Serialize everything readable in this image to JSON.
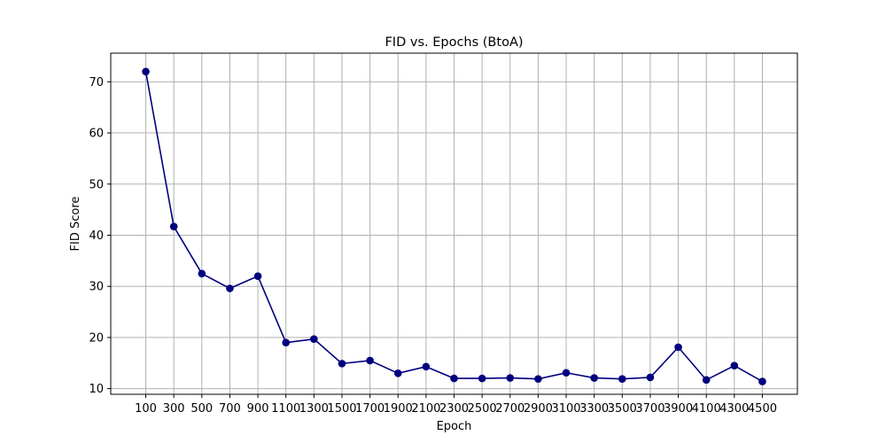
{
  "chart_data": {
    "type": "line",
    "title": "FID vs. Epochs (BtoA)",
    "xlabel": "Epoch",
    "ylabel": "FID Score",
    "x": [
      100,
      300,
      500,
      700,
      900,
      1100,
      1300,
      1500,
      1700,
      1900,
      2100,
      2300,
      2500,
      2700,
      2900,
      3100,
      3300,
      3500,
      3700,
      3900,
      4100,
      4300,
      4500
    ],
    "series": [
      {
        "values": [
          72.0,
          41.7,
          32.5,
          29.6,
          32.0,
          19.0,
          19.7,
          14.9,
          15.5,
          13.0,
          14.3,
          12.0,
          12.0,
          12.1,
          11.9,
          13.1,
          12.1,
          11.9,
          12.2,
          18.1,
          11.7,
          14.5,
          11.4
        ],
        "color": "#00007f",
        "marker": "circle"
      }
    ],
    "yticks": [
      10,
      20,
      30,
      40,
      50,
      60,
      70
    ],
    "ylim": [
      8.9,
      75.6
    ],
    "xlim": [
      -150,
      4750
    ],
    "grid": true,
    "grid_color": "#b0b0b0"
  }
}
